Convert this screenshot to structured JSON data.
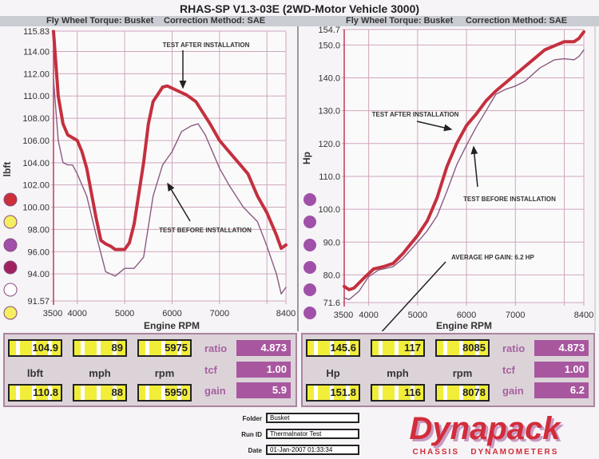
{
  "header": {
    "title": "RHAS-SP V1.3-03E (2WD-Motor Vehicle 3000)",
    "left_subtitle_1": "Fly Wheel Torque: Busket",
    "left_subtitle_2": "Correction Method: SAE",
    "right_subtitle_1": "Fly Wheel Torque: Busket",
    "right_subtitle_2": "Correction Method: SAE"
  },
  "colors": {
    "after": "#c4303e",
    "before": "#8a5a80",
    "grid": "#cfa6bd",
    "panel_value_bg": "#a8579f",
    "readout_yellow": "#f1ee3a"
  },
  "legend_left": [
    "#cc2e3a",
    "#f4ee60",
    "#a050a8",
    "#a02060",
    "#ffffff",
    "#f4ee60"
  ],
  "legend_right": [
    "#a050a8",
    "#a050a8",
    "#a050a8",
    "#a050a8",
    "#a050a8",
    "#a050a8"
  ],
  "chart_data": [
    {
      "type": "line",
      "xlabel": "Engine RPM",
      "ylabel": "lbft",
      "xlim": [
        3500,
        8400
      ],
      "ylim": [
        91.57,
        115.83
      ],
      "xticks": [
        "3500",
        "4000",
        "5000",
        "6000",
        "7000",
        "8400"
      ],
      "xtick_values": [
        3500,
        4000,
        5000,
        6000,
        7000,
        8400
      ],
      "yticks": [
        "115.83",
        "114.00",
        "112.00",
        "110.00",
        "108.00",
        "106.00",
        "104.00",
        "102.00",
        "100.00",
        "98.00",
        "96.00",
        "94.00",
        "91.57"
      ],
      "ytick_values": [
        115.83,
        114,
        112,
        110,
        108,
        106,
        104,
        102,
        100,
        98,
        96,
        94,
        91.57
      ],
      "grid": true,
      "annotations": [
        "TEST AFTER INSTALLATION",
        "TEST BEFORE INSTALLATION"
      ],
      "series": [
        {
          "x": [
            3500,
            3600,
            3700,
            3800,
            4000,
            4100,
            4200,
            4400,
            4500,
            4600,
            4700,
            4800,
            5000,
            5100,
            5200,
            5400,
            5500,
            5600,
            5800,
            5900,
            6000,
            6300,
            6500,
            6800,
            7000,
            7200,
            7400,
            7600,
            7800,
            8000,
            8200,
            8300,
            8400
          ],
          "y": [
            115.8,
            110,
            107.5,
            106.5,
            106,
            105,
            103.5,
            99,
            97,
            96.7,
            96.5,
            96.2,
            96.2,
            96.8,
            98.5,
            104,
            107.5,
            109.5,
            110.8,
            110.9,
            110.7,
            110.1,
            109.5,
            107.5,
            106,
            105,
            104,
            103,
            101,
            99.5,
            97.5,
            96.3,
            96.6
          ]
        },
        {
          "x": [
            3500,
            3600,
            3700,
            3800,
            3900,
            4000,
            4200,
            4400,
            4600,
            4800,
            5000,
            5200,
            5400,
            5600,
            5800,
            6000,
            6200,
            6400,
            6550,
            6700,
            7000,
            7200,
            7500,
            7800,
            8000,
            8200,
            8300,
            8400
          ],
          "y": [
            111.5,
            106,
            104,
            103.8,
            103.8,
            103,
            101,
            97.5,
            94.2,
            93.8,
            94.5,
            94.5,
            95.5,
            101,
            103.8,
            105,
            106.8,
            107.3,
            107.5,
            106.5,
            103.5,
            102,
            100,
            98.7,
            96.5,
            94,
            92.2,
            92.8
          ]
        }
      ]
    },
    {
      "type": "line",
      "xlabel": "Engine RPM",
      "ylabel": "Hp",
      "xlim": [
        3500,
        8400
      ],
      "ylim": [
        71.6,
        154.7
      ],
      "xticks": [
        "3500",
        "4000",
        "5000",
        "6000",
        "7000",
        "8400"
      ],
      "xtick_values": [
        3500,
        4000,
        5000,
        6000,
        7000,
        8400
      ],
      "yticks": [
        "154.7",
        "150.0",
        "140.0",
        "130.0",
        "120.0",
        "110.0",
        "100.0",
        "90.0",
        "80.0",
        "71.6"
      ],
      "ytick_values": [
        154.7,
        150,
        140,
        130,
        120,
        110,
        100,
        90,
        80,
        71.6
      ],
      "grid": true,
      "annotations": [
        "TEST AFTER INSTALLATION",
        "TEST BEFORE INSTALLATION",
        "AVERAGE HP GAIN: 6.2 HP"
      ],
      "series": [
        {
          "x": [
            3500,
            3600,
            3700,
            3900,
            4100,
            4300,
            4500,
            4700,
            5000,
            5200,
            5400,
            5600,
            5800,
            6000,
            6200,
            6400,
            6600,
            7000,
            7400,
            7600,
            8000,
            8200,
            8300,
            8400
          ],
          "y": [
            76.5,
            75.5,
            76,
            79,
            81.8,
            82.5,
            83.5,
            86.5,
            92,
            96.5,
            103.5,
            113,
            120,
            125.5,
            129,
            133,
            136,
            141,
            146,
            148.5,
            151,
            151,
            152,
            154
          ]
        },
        {
          "x": [
            3500,
            3600,
            3800,
            4000,
            4200,
            4500,
            4700,
            5000,
            5200,
            5400,
            5600,
            5800,
            6000,
            6200,
            6400,
            6600,
            6800,
            7000,
            7200,
            7500,
            7800,
            8000,
            8200,
            8300,
            8400
          ],
          "y": [
            73,
            72.5,
            75,
            79.5,
            81.5,
            82.5,
            85,
            90,
            93.5,
            98,
            105.5,
            113.5,
            119.5,
            125,
            130,
            135,
            136.5,
            137.5,
            139,
            143,
            145.5,
            145.8,
            145.5,
            146.5,
            148.5
          ]
        }
      ]
    }
  ],
  "left_panel": {
    "row1": [
      "104.9",
      "89",
      "5975"
    ],
    "units": [
      "lbft",
      "mph",
      "rpm"
    ],
    "row2": [
      "110.8",
      "88",
      "5950"
    ],
    "labels": [
      "ratio",
      "tcf",
      "gain"
    ],
    "values": [
      "4.873",
      "1.00",
      "5.9"
    ]
  },
  "right_panel": {
    "row1": [
      "145.6",
      "117",
      "8085"
    ],
    "units": [
      "Hp",
      "mph",
      "rpm"
    ],
    "row2": [
      "151.8",
      "116",
      "8078"
    ],
    "labels": [
      "ratio",
      "tcf",
      "gain"
    ],
    "values": [
      "4.873",
      "1.00",
      "6.2"
    ]
  },
  "info": {
    "folder_label": "Folder",
    "folder": "Busket",
    "run_label": "Run ID",
    "run": "Thermalnator Test",
    "date_label": "Date",
    "date": "01-Jan-2007 01:33:34"
  },
  "logo": {
    "name": "Dynapack",
    "tagline": "CHASSIS   DYNAMOMETERS"
  }
}
